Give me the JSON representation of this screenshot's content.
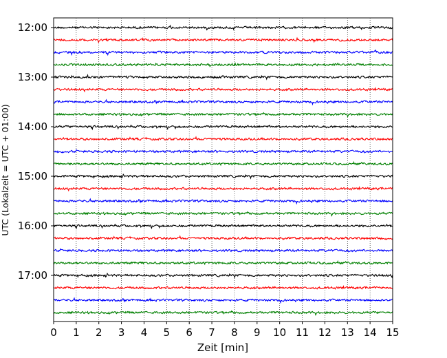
{
  "chart_data": {
    "type": "line",
    "title": "",
    "xlabel": "Zeit  [min]",
    "ylabel": "UTC (Lokalzeit = UTC + 01:00)",
    "xlim": [
      0,
      15
    ],
    "x_ticks": [
      "0",
      "1",
      "2",
      "3",
      "4",
      "5",
      "6",
      "7",
      "8",
      "9",
      "10",
      "11",
      "12",
      "13",
      "14",
      "15"
    ],
    "y_ticks": [
      "12:00",
      "13:00",
      "14:00",
      "15:00",
      "16:00",
      "17:00"
    ],
    "grid": "vertical dotted",
    "trace_colors": [
      "#000000",
      "#ff0000",
      "#0000ff",
      "#008000"
    ],
    "traces": [
      {
        "start": "12:00",
        "color": "#000000"
      },
      {
        "start": "12:15",
        "color": "#ff0000"
      },
      {
        "start": "12:30",
        "color": "#0000ff"
      },
      {
        "start": "12:45",
        "color": "#008000"
      },
      {
        "start": "13:00",
        "color": "#000000"
      },
      {
        "start": "13:15",
        "color": "#ff0000"
      },
      {
        "start": "13:30",
        "color": "#0000ff"
      },
      {
        "start": "13:45",
        "color": "#008000"
      },
      {
        "start": "14:00",
        "color": "#000000"
      },
      {
        "start": "14:15",
        "color": "#ff0000"
      },
      {
        "start": "14:30",
        "color": "#0000ff"
      },
      {
        "start": "14:45",
        "color": "#008000"
      },
      {
        "start": "15:00",
        "color": "#000000"
      },
      {
        "start": "15:15",
        "color": "#ff0000"
      },
      {
        "start": "15:30",
        "color": "#0000ff"
      },
      {
        "start": "15:45",
        "color": "#008000"
      },
      {
        "start": "16:00",
        "color": "#000000"
      },
      {
        "start": "16:15",
        "color": "#ff0000"
      },
      {
        "start": "16:30",
        "color": "#0000ff"
      },
      {
        "start": "16:45",
        "color": "#008000"
      },
      {
        "start": "17:00",
        "color": "#000000"
      },
      {
        "start": "17:15",
        "color": "#ff0000"
      },
      {
        "start": "17:30",
        "color": "#0000ff"
      },
      {
        "start": "17:45",
        "color": "#008000"
      }
    ]
  }
}
